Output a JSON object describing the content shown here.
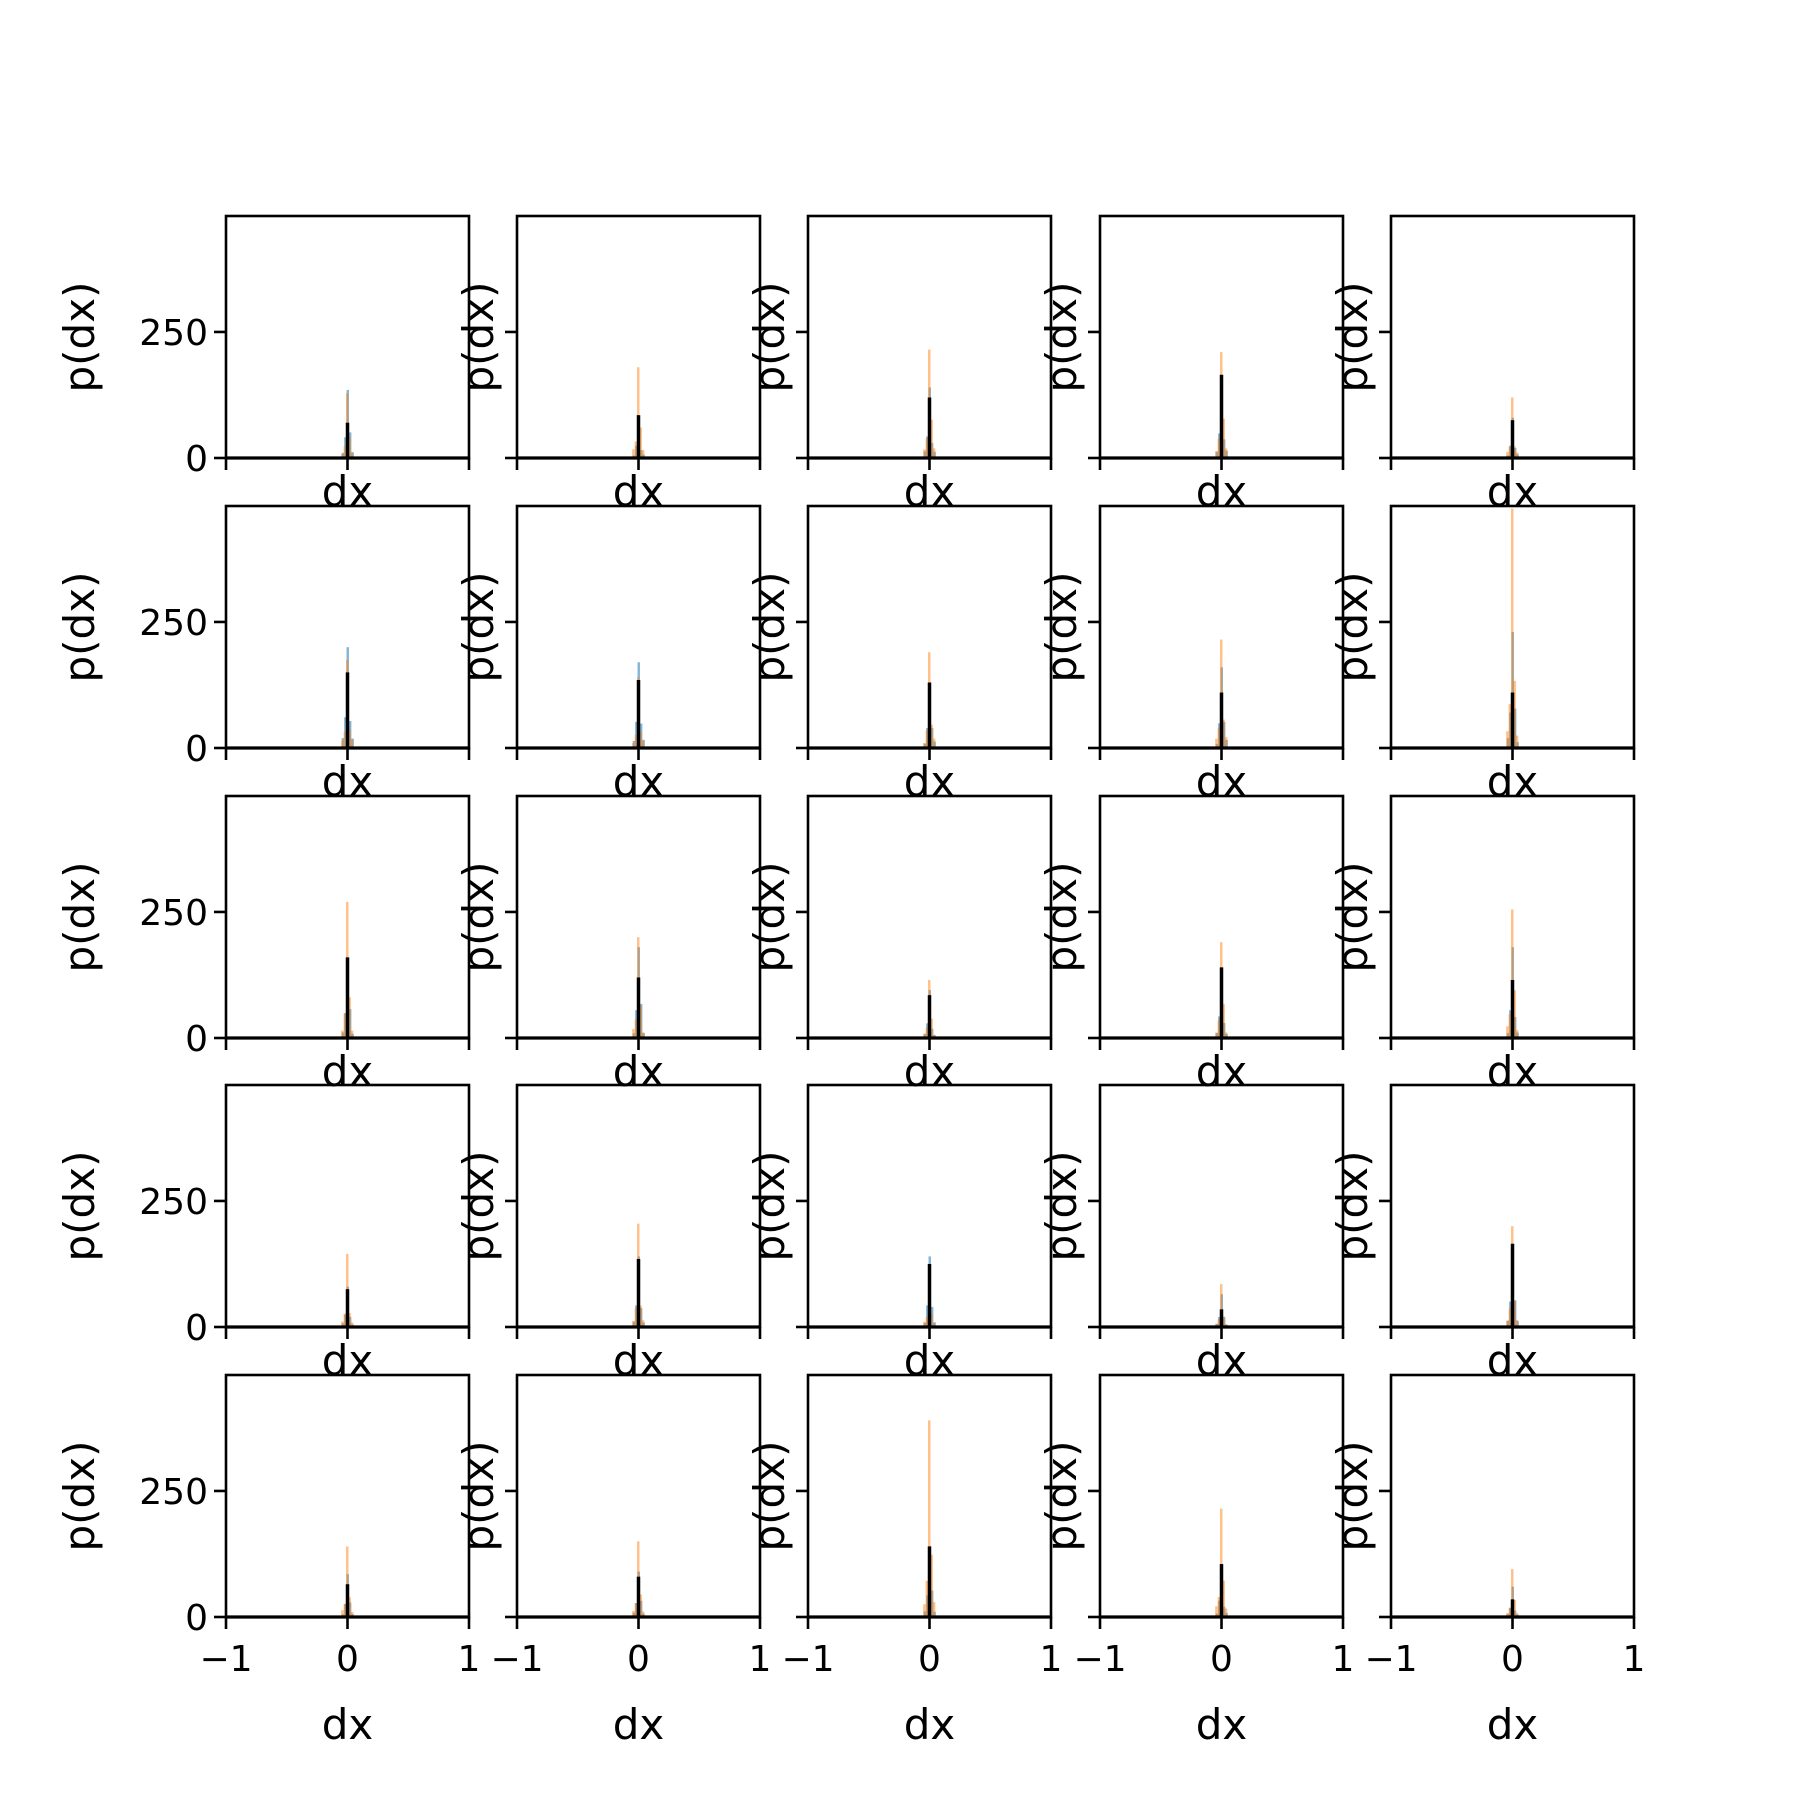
{
  "chart_data": {
    "type": "bar",
    "layout": "5x5 grid of histograms",
    "xlabel": "dx",
    "ylabel": "p(dx)",
    "xlim": [
      -1,
      1
    ],
    "ylim": [
      0,
      480
    ],
    "xticks": [
      -1,
      0,
      1
    ],
    "xtick_labels": [
      "−1",
      "0",
      "1"
    ],
    "yticks": [
      0,
      250
    ],
    "ytick_labels": [
      "0",
      "250"
    ],
    "bin_width": 0.04,
    "colors": {
      "blue": "#1f77b4",
      "orange": "#ff7f0e",
      "black": "#000000"
    },
    "panels": [
      {
        "row": 0,
        "col": 0,
        "blue_peak": 135,
        "orange_peak": 128,
        "black_peak": 70
      },
      {
        "row": 0,
        "col": 1,
        "blue_peak": 80,
        "orange_peak": 180,
        "black_peak": 85
      },
      {
        "row": 0,
        "col": 2,
        "blue_peak": 140,
        "orange_peak": 215,
        "black_peak": 120
      },
      {
        "row": 0,
        "col": 3,
        "blue_peak": 160,
        "orange_peak": 210,
        "black_peak": 165
      },
      {
        "row": 0,
        "col": 4,
        "blue_peak": 80,
        "orange_peak": 120,
        "black_peak": 75
      },
      {
        "row": 1,
        "col": 0,
        "blue_peak": 200,
        "orange_peak": 175,
        "black_peak": 150
      },
      {
        "row": 1,
        "col": 1,
        "blue_peak": 170,
        "orange_peak": 140,
        "black_peak": 135
      },
      {
        "row": 1,
        "col": 2,
        "blue_peak": 130,
        "orange_peak": 190,
        "black_peak": 130
      },
      {
        "row": 1,
        "col": 3,
        "blue_peak": 160,
        "orange_peak": 215,
        "black_peak": 110
      },
      {
        "row": 1,
        "col": 4,
        "blue_peak": 230,
        "orange_peak": 475,
        "black_peak": 110
      },
      {
        "row": 2,
        "col": 0,
        "blue_peak": 160,
        "orange_peak": 270,
        "black_peak": 160
      },
      {
        "row": 2,
        "col": 1,
        "blue_peak": 180,
        "orange_peak": 200,
        "black_peak": 120
      },
      {
        "row": 2,
        "col": 2,
        "blue_peak": 95,
        "orange_peak": 115,
        "black_peak": 85
      },
      {
        "row": 2,
        "col": 3,
        "blue_peak": 140,
        "orange_peak": 190,
        "black_peak": 140
      },
      {
        "row": 2,
        "col": 4,
        "blue_peak": 180,
        "orange_peak": 255,
        "black_peak": 115
      },
      {
        "row": 3,
        "col": 0,
        "blue_peak": 80,
        "orange_peak": 145,
        "black_peak": 75
      },
      {
        "row": 3,
        "col": 1,
        "blue_peak": 140,
        "orange_peak": 205,
        "black_peak": 135
      },
      {
        "row": 3,
        "col": 2,
        "blue_peak": 140,
        "orange_peak": 110,
        "black_peak": 125
      },
      {
        "row": 3,
        "col": 3,
        "blue_peak": 65,
        "orange_peak": 85,
        "black_peak": 35
      },
      {
        "row": 3,
        "col": 4,
        "blue_peak": 165,
        "orange_peak": 200,
        "black_peak": 165
      },
      {
        "row": 4,
        "col": 0,
        "blue_peak": 85,
        "orange_peak": 140,
        "black_peak": 65
      },
      {
        "row": 4,
        "col": 1,
        "blue_peak": 90,
        "orange_peak": 150,
        "black_peak": 80
      },
      {
        "row": 4,
        "col": 2,
        "blue_peak": 140,
        "orange_peak": 390,
        "black_peak": 140
      },
      {
        "row": 4,
        "col": 3,
        "blue_peak": 105,
        "orange_peak": 215,
        "black_peak": 105
      },
      {
        "row": 4,
        "col": 4,
        "blue_peak": 60,
        "orange_peak": 95,
        "black_peak": 35
      }
    ]
  }
}
